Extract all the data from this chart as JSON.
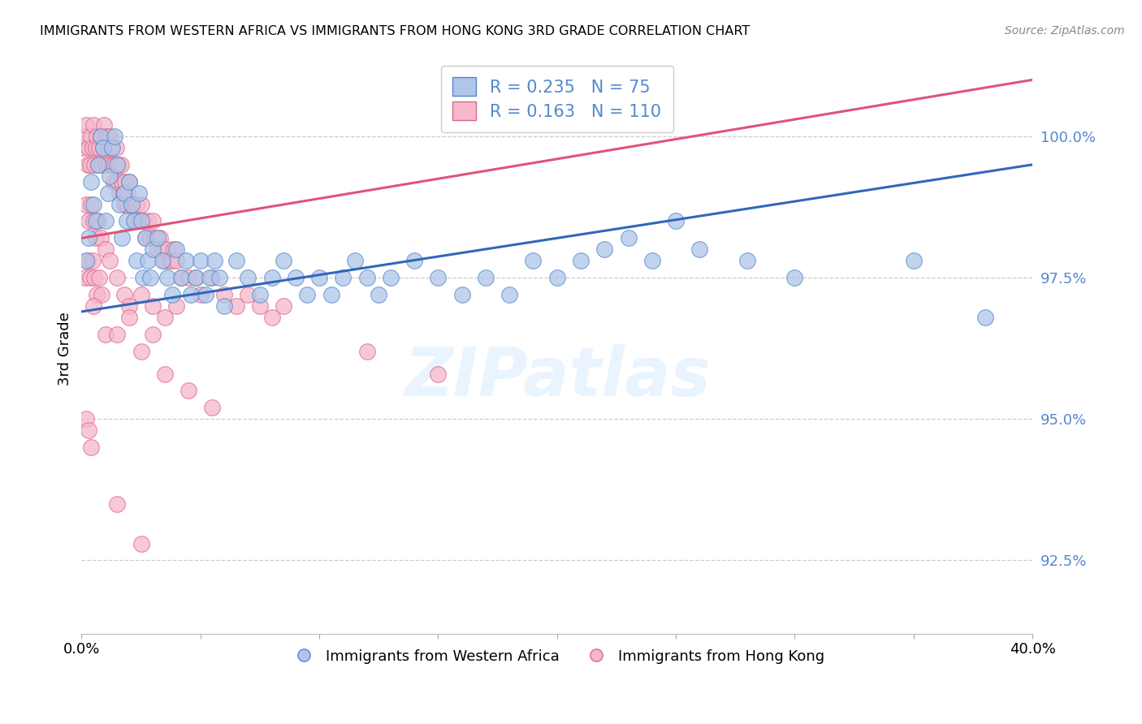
{
  "title": "IMMIGRANTS FROM WESTERN AFRICA VS IMMIGRANTS FROM HONG KONG 3RD GRADE CORRELATION CHART",
  "source": "Source: ZipAtlas.com",
  "ylabel": "3rd Grade",
  "xlim": [
    0.0,
    40.0
  ],
  "ylim": [
    91.2,
    101.3
  ],
  "yticks": [
    92.5,
    95.0,
    97.5,
    100.0
  ],
  "ytick_labels": [
    "92.5%",
    "95.0%",
    "97.5%",
    "100.0%"
  ],
  "xtick_positions": [
    0,
    5,
    10,
    15,
    20,
    25,
    30,
    35,
    40
  ],
  "xtick_labels": [
    "0.0%",
    "",
    "",
    "",
    "",
    "",
    "",
    "",
    "40.0%"
  ],
  "blue_label": "Immigrants from Western Africa",
  "pink_label": "Immigrants from Hong Kong",
  "blue_R": 0.235,
  "blue_N": 75,
  "pink_R": 0.163,
  "pink_N": 110,
  "blue_color": "#aec6e8",
  "blue_edge_color": "#5588cc",
  "blue_line_color": "#3366bb",
  "pink_color": "#f5b8cc",
  "pink_edge_color": "#dd6688",
  "pink_line_color": "#dd5577",
  "watermark_text": "ZIPatlas",
  "blue_trend_x0": 0.0,
  "blue_trend_y0": 96.9,
  "blue_trend_x1": 40.0,
  "blue_trend_y1": 99.5,
  "pink_trend_x0": 0.0,
  "pink_trend_y0": 98.2,
  "pink_trend_x1": 40.0,
  "pink_trend_y1": 101.0,
  "blue_scatter_x": [
    0.2,
    0.3,
    0.4,
    0.5,
    0.6,
    0.7,
    0.8,
    0.9,
    1.0,
    1.1,
    1.2,
    1.3,
    1.4,
    1.5,
    1.6,
    1.7,
    1.8,
    1.9,
    2.0,
    2.1,
    2.2,
    2.3,
    2.4,
    2.5,
    2.6,
    2.7,
    2.8,
    2.9,
    3.0,
    3.2,
    3.4,
    3.6,
    3.8,
    4.0,
    4.2,
    4.4,
    4.6,
    4.8,
    5.0,
    5.2,
    5.4,
    5.6,
    5.8,
    6.0,
    6.5,
    7.0,
    7.5,
    8.0,
    8.5,
    9.0,
    9.5,
    10.0,
    10.5,
    11.0,
    11.5,
    12.0,
    12.5,
    13.0,
    14.0,
    15.0,
    16.0,
    17.0,
    18.0,
    19.0,
    20.0,
    21.0,
    22.0,
    23.0,
    24.0,
    25.0,
    26.0,
    28.0,
    30.0,
    35.0,
    38.0
  ],
  "blue_scatter_y": [
    97.8,
    98.2,
    99.2,
    98.8,
    98.5,
    99.5,
    100.0,
    99.8,
    98.5,
    99.0,
    99.3,
    99.8,
    100.0,
    99.5,
    98.8,
    98.2,
    99.0,
    98.5,
    99.2,
    98.8,
    98.5,
    97.8,
    99.0,
    98.5,
    97.5,
    98.2,
    97.8,
    97.5,
    98.0,
    98.2,
    97.8,
    97.5,
    97.2,
    98.0,
    97.5,
    97.8,
    97.2,
    97.5,
    97.8,
    97.2,
    97.5,
    97.8,
    97.5,
    97.0,
    97.8,
    97.5,
    97.2,
    97.5,
    97.8,
    97.5,
    97.2,
    97.5,
    97.2,
    97.5,
    97.8,
    97.5,
    97.2,
    97.5,
    97.8,
    97.5,
    97.2,
    97.5,
    97.2,
    97.8,
    97.5,
    97.8,
    98.0,
    98.2,
    97.8,
    98.5,
    98.0,
    97.8,
    97.5,
    97.8,
    96.8
  ],
  "pink_scatter_x": [
    0.1,
    0.15,
    0.2,
    0.25,
    0.3,
    0.35,
    0.4,
    0.45,
    0.5,
    0.55,
    0.6,
    0.65,
    0.7,
    0.75,
    0.8,
    0.85,
    0.9,
    0.95,
    1.0,
    1.05,
    1.1,
    1.15,
    1.2,
    1.25,
    1.3,
    1.35,
    1.4,
    1.45,
    1.5,
    1.55,
    1.6,
    1.65,
    1.7,
    1.75,
    1.8,
    1.85,
    1.9,
    1.95,
    2.0,
    2.1,
    2.2,
    2.3,
    2.4,
    2.5,
    2.6,
    2.7,
    2.8,
    2.9,
    3.0,
    3.1,
    3.2,
    3.3,
    3.4,
    3.5,
    3.6,
    3.7,
    3.8,
    3.9,
    4.0,
    4.2,
    4.5,
    4.8,
    5.0,
    5.5,
    6.0,
    6.5,
    7.0,
    7.5,
    8.0,
    8.5,
    0.2,
    0.3,
    0.4,
    0.5,
    0.6,
    0.7,
    0.8,
    1.0,
    1.2,
    1.5,
    1.8,
    2.0,
    2.5,
    3.0,
    3.5,
    4.0,
    0.15,
    0.25,
    0.35,
    0.45,
    0.55,
    0.65,
    0.75,
    0.85,
    0.5,
    1.0,
    2.0,
    3.0,
    12.0,
    15.0,
    1.5,
    2.5,
    3.5,
    4.5,
    5.5,
    0.2,
    0.3,
    0.4,
    1.5,
    2.5
  ],
  "pink_scatter_y": [
    99.8,
    100.0,
    100.2,
    99.5,
    99.8,
    99.5,
    100.0,
    99.8,
    100.2,
    99.5,
    99.8,
    100.0,
    99.5,
    99.8,
    100.0,
    99.5,
    99.8,
    100.2,
    99.5,
    100.0,
    99.8,
    99.5,
    100.0,
    99.8,
    99.5,
    99.2,
    99.5,
    99.8,
    99.2,
    99.5,
    99.0,
    99.5,
    99.2,
    99.0,
    98.8,
    99.2,
    98.8,
    99.0,
    99.2,
    98.8,
    98.5,
    98.8,
    98.5,
    98.8,
    98.5,
    98.2,
    98.5,
    98.2,
    98.5,
    98.2,
    98.0,
    98.2,
    98.0,
    97.8,
    98.0,
    97.8,
    97.8,
    98.0,
    97.8,
    97.5,
    97.5,
    97.5,
    97.2,
    97.5,
    97.2,
    97.0,
    97.2,
    97.0,
    96.8,
    97.0,
    98.8,
    98.5,
    98.8,
    98.5,
    98.2,
    98.5,
    98.2,
    98.0,
    97.8,
    97.5,
    97.2,
    97.0,
    97.2,
    97.0,
    96.8,
    97.0,
    97.5,
    97.8,
    97.5,
    97.8,
    97.5,
    97.2,
    97.5,
    97.2,
    97.0,
    96.5,
    96.8,
    96.5,
    96.2,
    95.8,
    96.5,
    96.2,
    95.8,
    95.5,
    95.2,
    95.0,
    94.8,
    94.5,
    93.5,
    92.8
  ]
}
